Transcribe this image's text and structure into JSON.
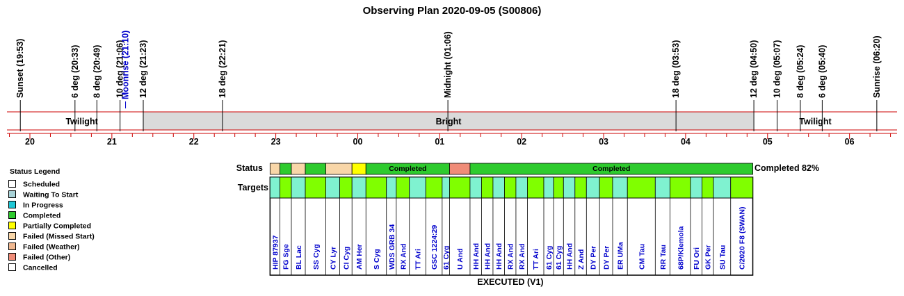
{
  "title": "Observing Plan 2020-09-05 (S00806)",
  "chart_data": {
    "type": "timeline",
    "title": "Observing Plan 2020-09-05 (S00806)",
    "x_axis": {
      "unit": "hour (local)",
      "start_hour": 19.72,
      "end_hour": 30.58,
      "tick_labels": [
        "20",
        "21",
        "22",
        "23",
        "00",
        "01",
        "02",
        "03",
        "04",
        "05",
        "06"
      ],
      "tick_hours": [
        20,
        21,
        22,
        23,
        24,
        25,
        26,
        27,
        28,
        29,
        30
      ]
    },
    "events": [
      {
        "label": "Sunset (19:53)",
        "hour": 19.883,
        "color": "#000000"
      },
      {
        "label": "6 deg (20:33)",
        "hour": 20.55,
        "color": "#000000"
      },
      {
        "label": "8 deg (20:49)",
        "hour": 20.817,
        "color": "#000000"
      },
      {
        "label": "10 deg (21:06)",
        "hour": 21.1,
        "color": "#000000"
      },
      {
        "label": "Moonrise (21:10)",
        "hour": 21.167,
        "color": "#0000cc"
      },
      {
        "label": "12 deg (21:23)",
        "hour": 21.383,
        "color": "#000000"
      },
      {
        "label": "18 deg (22:21)",
        "hour": 22.35,
        "color": "#000000"
      },
      {
        "label": "Midnight (01:06)",
        "hour": 25.1,
        "color": "#000000"
      },
      {
        "label": "18 deg (03:53)",
        "hour": 27.883,
        "color": "#000000"
      },
      {
        "label": "12 deg (04:50)",
        "hour": 28.833,
        "color": "#000000"
      },
      {
        "label": "10 deg (05:07)",
        "hour": 29.117,
        "color": "#000000"
      },
      {
        "label": "8 deg (05:24)",
        "hour": 29.4,
        "color": "#000000"
      },
      {
        "label": "6 deg (05:40)",
        "hour": 29.667,
        "color": "#000000"
      },
      {
        "label": "Sunrise (06:20)",
        "hour": 30.333,
        "color": "#000000"
      }
    ],
    "sky_bands": [
      {
        "label": "Twilight",
        "start": 19.883,
        "end": 21.383,
        "color": "#ffffff"
      },
      {
        "label": "Bright",
        "start": 21.383,
        "end": 28.833,
        "color": "#dadada"
      },
      {
        "label": "Twilight",
        "start": 28.833,
        "end": 30.333,
        "color": "#ffffff"
      }
    ],
    "status_label": "Status",
    "targets_label": "Targets",
    "summary": "Completed 82%",
    "footer": "EXECUTED (V1)",
    "legend": {
      "title": "Status Legend",
      "items": [
        {
          "label": "Scheduled",
          "color": "#ffffff"
        },
        {
          "label": "Waiting To Start",
          "color": "#a9d3d8"
        },
        {
          "label": "In Progress",
          "color": "#1ec8d6"
        },
        {
          "label": "Completed",
          "color": "#2ecb2e"
        },
        {
          "label": "Partially Completed",
          "color": "#ffff00"
        },
        {
          "label": "Failed (Missed Start)",
          "color": "#f8d6a8"
        },
        {
          "label": "Failed (Weather)",
          "color": "#f0b890"
        },
        {
          "label": "Failed (Other)",
          "color": "#f08c78"
        },
        {
          "label": "Cancelled",
          "color": "#ffffff"
        }
      ]
    },
    "status_segments": [
      {
        "start": 22.93,
        "end": 23.05,
        "status": "Failed (Missed Start)",
        "color": "#f8d6a8",
        "label": ""
      },
      {
        "start": 23.05,
        "end": 23.19,
        "status": "Completed",
        "color": "#2ecb2e",
        "label": ""
      },
      {
        "start": 23.19,
        "end": 23.36,
        "status": "Failed (Missed Start)",
        "color": "#f8d6a8",
        "label": ""
      },
      {
        "start": 23.36,
        "end": 23.61,
        "status": "Completed",
        "color": "#2ecb2e",
        "label": ""
      },
      {
        "start": 23.61,
        "end": 23.93,
        "status": "Failed (Missed Start)",
        "color": "#f8d6a8",
        "label": ""
      },
      {
        "start": 23.93,
        "end": 24.1,
        "status": "Partially Completed",
        "color": "#ffff00",
        "label": ""
      },
      {
        "start": 24.1,
        "end": 25.12,
        "status": "Completed",
        "color": "#2ecb2e",
        "label": "Completed"
      },
      {
        "start": 25.12,
        "end": 25.37,
        "status": "Failed (Other)",
        "color": "#f08c78",
        "label": ""
      },
      {
        "start": 25.37,
        "end": 28.82,
        "status": "Completed",
        "color": "#2ecb2e",
        "label": "Completed"
      }
    ],
    "targets": [
      {
        "name": "HIP 87937",
        "start": 22.93,
        "end": 23.05,
        "color": "#7ff2d0"
      },
      {
        "name": "FG Sge",
        "start": 23.05,
        "end": 23.19,
        "color": "#80ff00"
      },
      {
        "name": "BL Lac",
        "start": 23.19,
        "end": 23.36,
        "color": "#7ff2d0"
      },
      {
        "name": "SS Cyg",
        "start": 23.36,
        "end": 23.61,
        "color": "#80ff00"
      },
      {
        "name": "CY Lyr",
        "start": 23.61,
        "end": 23.78,
        "color": "#7ff2d0"
      },
      {
        "name": "CI Cyg",
        "start": 23.78,
        "end": 23.93,
        "color": "#80ff00"
      },
      {
        "name": "AM Her",
        "start": 23.93,
        "end": 24.1,
        "color": "#7ff2d0"
      },
      {
        "name": "S Cyg",
        "start": 24.1,
        "end": 24.35,
        "color": "#80ff00"
      },
      {
        "name": "WDS GRB 34",
        "start": 24.35,
        "end": 24.47,
        "color": "#7ff2d0"
      },
      {
        "name": "RX And",
        "start": 24.47,
        "end": 24.63,
        "color": "#80ff00"
      },
      {
        "name": "TT Ari",
        "start": 24.63,
        "end": 24.83,
        "color": "#7ff2d0"
      },
      {
        "name": "GSC 1224:29",
        "start": 24.83,
        "end": 25.03,
        "color": "#80ff00"
      },
      {
        "name": "61 Cyg",
        "start": 25.03,
        "end": 25.12,
        "color": "#7ff2d0"
      },
      {
        "name": "U And",
        "start": 25.12,
        "end": 25.37,
        "color": "#80ff00"
      },
      {
        "name": "HH And",
        "start": 25.37,
        "end": 25.51,
        "color": "#7ff2d0"
      },
      {
        "name": "HH And",
        "start": 25.51,
        "end": 25.65,
        "color": "#80ff00"
      },
      {
        "name": "HH And",
        "start": 25.65,
        "end": 25.79,
        "color": "#7ff2d0"
      },
      {
        "name": "RX And",
        "start": 25.79,
        "end": 25.93,
        "color": "#80ff00"
      },
      {
        "name": "RX And",
        "start": 25.93,
        "end": 26.07,
        "color": "#7ff2d0"
      },
      {
        "name": "TT Ari",
        "start": 26.07,
        "end": 26.27,
        "color": "#80ff00"
      },
      {
        "name": "61 Cyg",
        "start": 26.27,
        "end": 26.39,
        "color": "#7ff2d0"
      },
      {
        "name": "61 Cyg",
        "start": 26.39,
        "end": 26.51,
        "color": "#80ff00"
      },
      {
        "name": "HH And",
        "start": 26.51,
        "end": 26.65,
        "color": "#7ff2d0"
      },
      {
        "name": "Z And",
        "start": 26.65,
        "end": 26.79,
        "color": "#80ff00"
      },
      {
        "name": "DY Per",
        "start": 26.79,
        "end": 26.95,
        "color": "#7ff2d0"
      },
      {
        "name": "DY Per",
        "start": 26.95,
        "end": 27.11,
        "color": "#80ff00"
      },
      {
        "name": "ER UMa",
        "start": 27.11,
        "end": 27.29,
        "color": "#7ff2d0"
      },
      {
        "name": "CM Tau",
        "start": 27.29,
        "end": 27.63,
        "color": "#80ff00"
      },
      {
        "name": "RR Tau",
        "start": 27.63,
        "end": 27.81,
        "color": "#7ff2d0"
      },
      {
        "name": "68P/Klemola",
        "start": 27.81,
        "end": 28.06,
        "color": "#80ff00"
      },
      {
        "name": "FU Ori",
        "start": 28.06,
        "end": 28.2,
        "color": "#7ff2d0"
      },
      {
        "name": "GK Per",
        "start": 28.2,
        "end": 28.34,
        "color": "#80ff00"
      },
      {
        "name": "SU Tau",
        "start": 28.34,
        "end": 28.55,
        "color": "#7ff2d0"
      },
      {
        "name": "C/2020 F8 (SWAN)",
        "start": 28.55,
        "end": 28.82,
        "color": "#80ff00"
      }
    ]
  }
}
